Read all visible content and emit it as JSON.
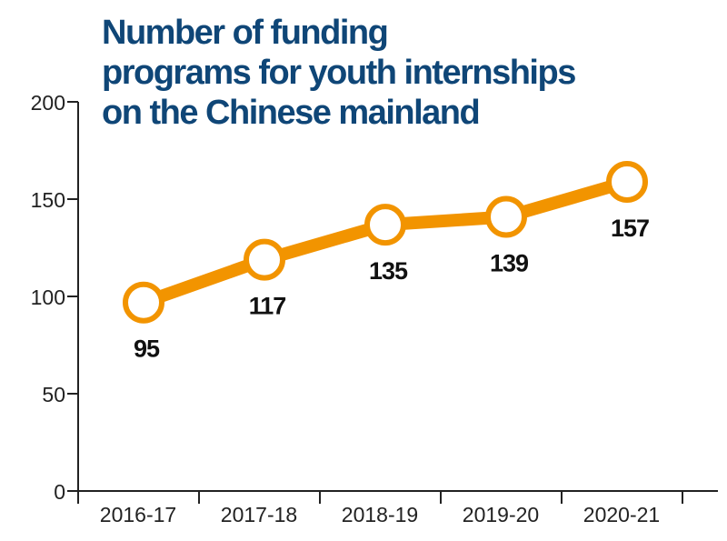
{
  "chart_data": {
    "type": "line",
    "title": "Number of funding programs for youth internships on the Chinese mainland",
    "title_lines": [
      "Number of funding",
      "programs for youth internships",
      "on the Chinese mainland"
    ],
    "xlabel": "",
    "ylabel": "",
    "categories": [
      "2016-17",
      "2017-18",
      "2018-19",
      "2019-20",
      "2020-21"
    ],
    "values": [
      95,
      117,
      135,
      139,
      157
    ],
    "data_labels": [
      "95",
      "117",
      "135",
      "139",
      "157"
    ],
    "ylim": [
      0,
      200
    ],
    "yticks": [
      0,
      50,
      100,
      150,
      200
    ],
    "grid": false,
    "colors": {
      "line": "#f29400",
      "title": "#0f4677",
      "axis": "#222222"
    }
  }
}
